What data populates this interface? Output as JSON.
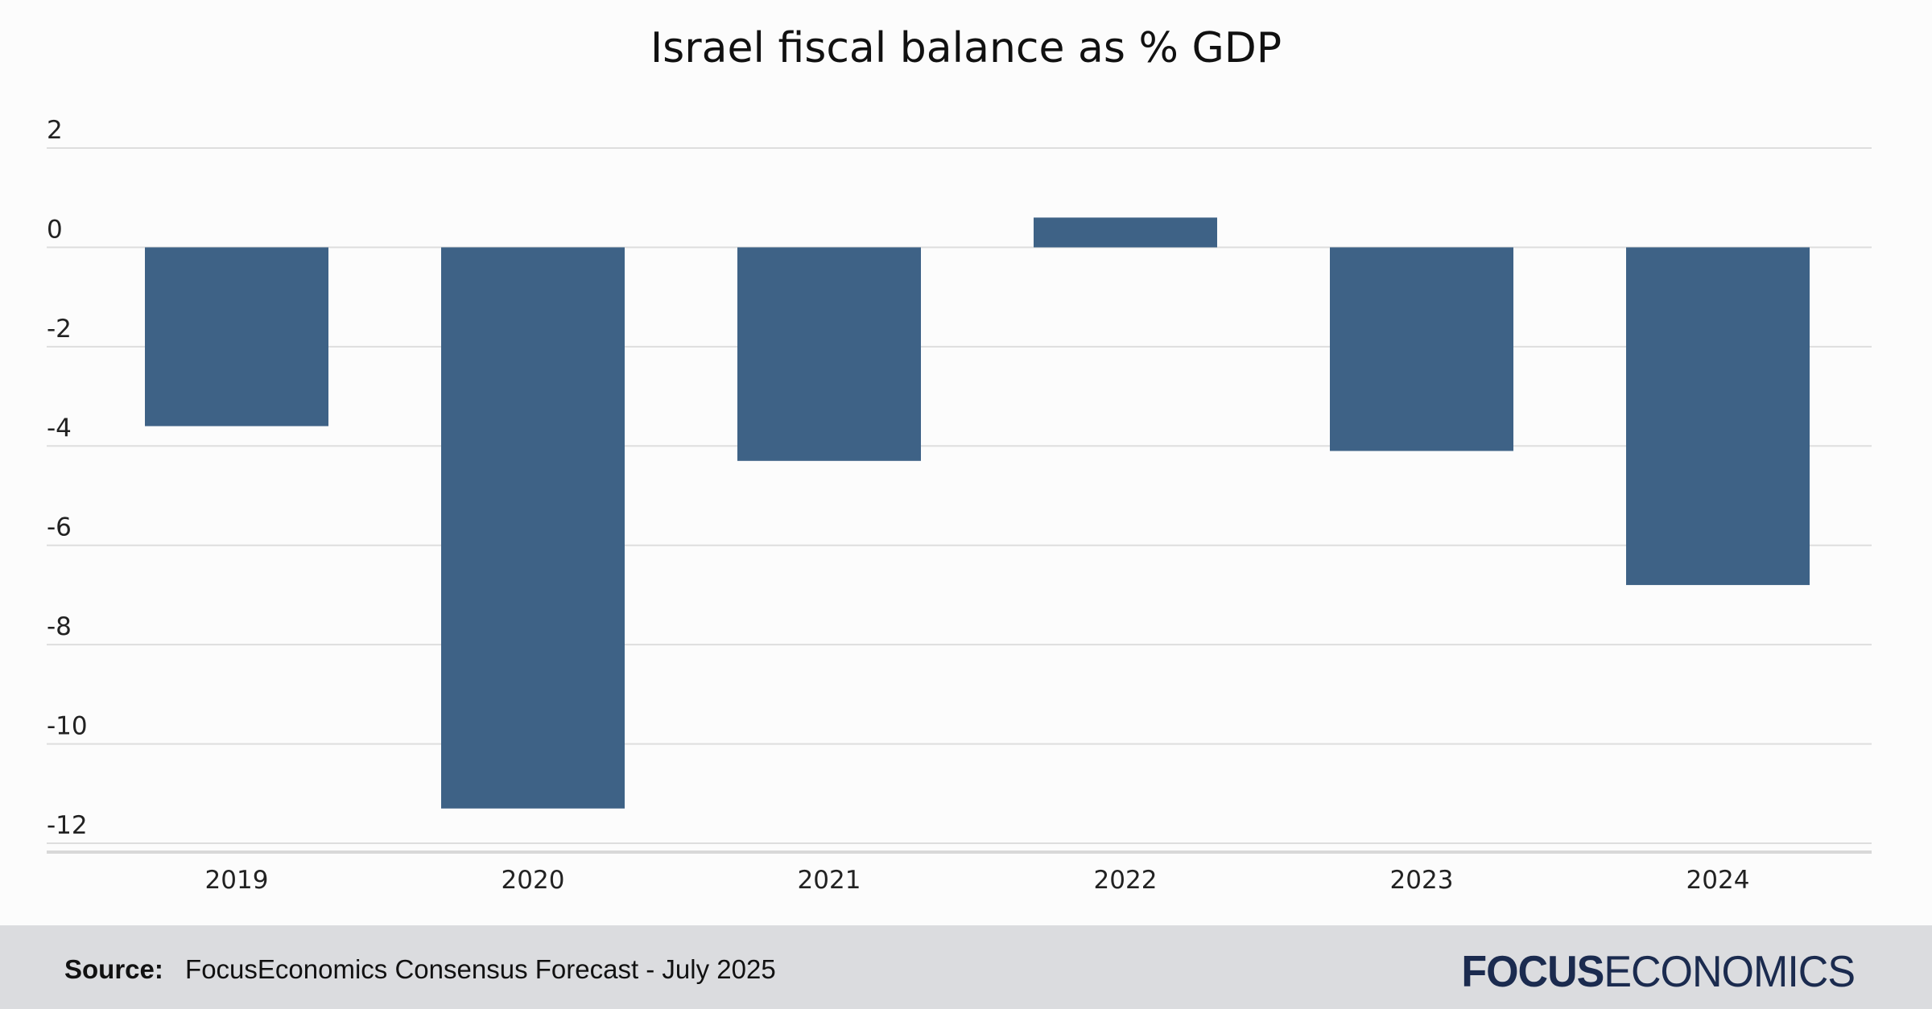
{
  "chart_data": {
    "type": "bar",
    "title": "Israel fiscal balance as % GDP",
    "categories": [
      "2019",
      "2020",
      "2021",
      "2022",
      "2023",
      "2024"
    ],
    "values": [
      -3.6,
      -11.3,
      -4.3,
      0.6,
      -4.1,
      -6.8
    ],
    "xlabel": "",
    "ylabel": "",
    "ylim": [
      -12,
      2
    ],
    "yticks": [
      2,
      0,
      -2,
      -4,
      -6,
      -8,
      -10,
      -12
    ],
    "grid": true,
    "legend": "none",
    "bar_color": "#3e6286"
  },
  "footer": {
    "source_label": "Source:",
    "source_text": "FocusEconomics Consensus Forecast - July 2025",
    "logo_bold": "FOCUS",
    "logo_light": "ECONOMICS",
    "logo_color": "#1b2b4f"
  }
}
